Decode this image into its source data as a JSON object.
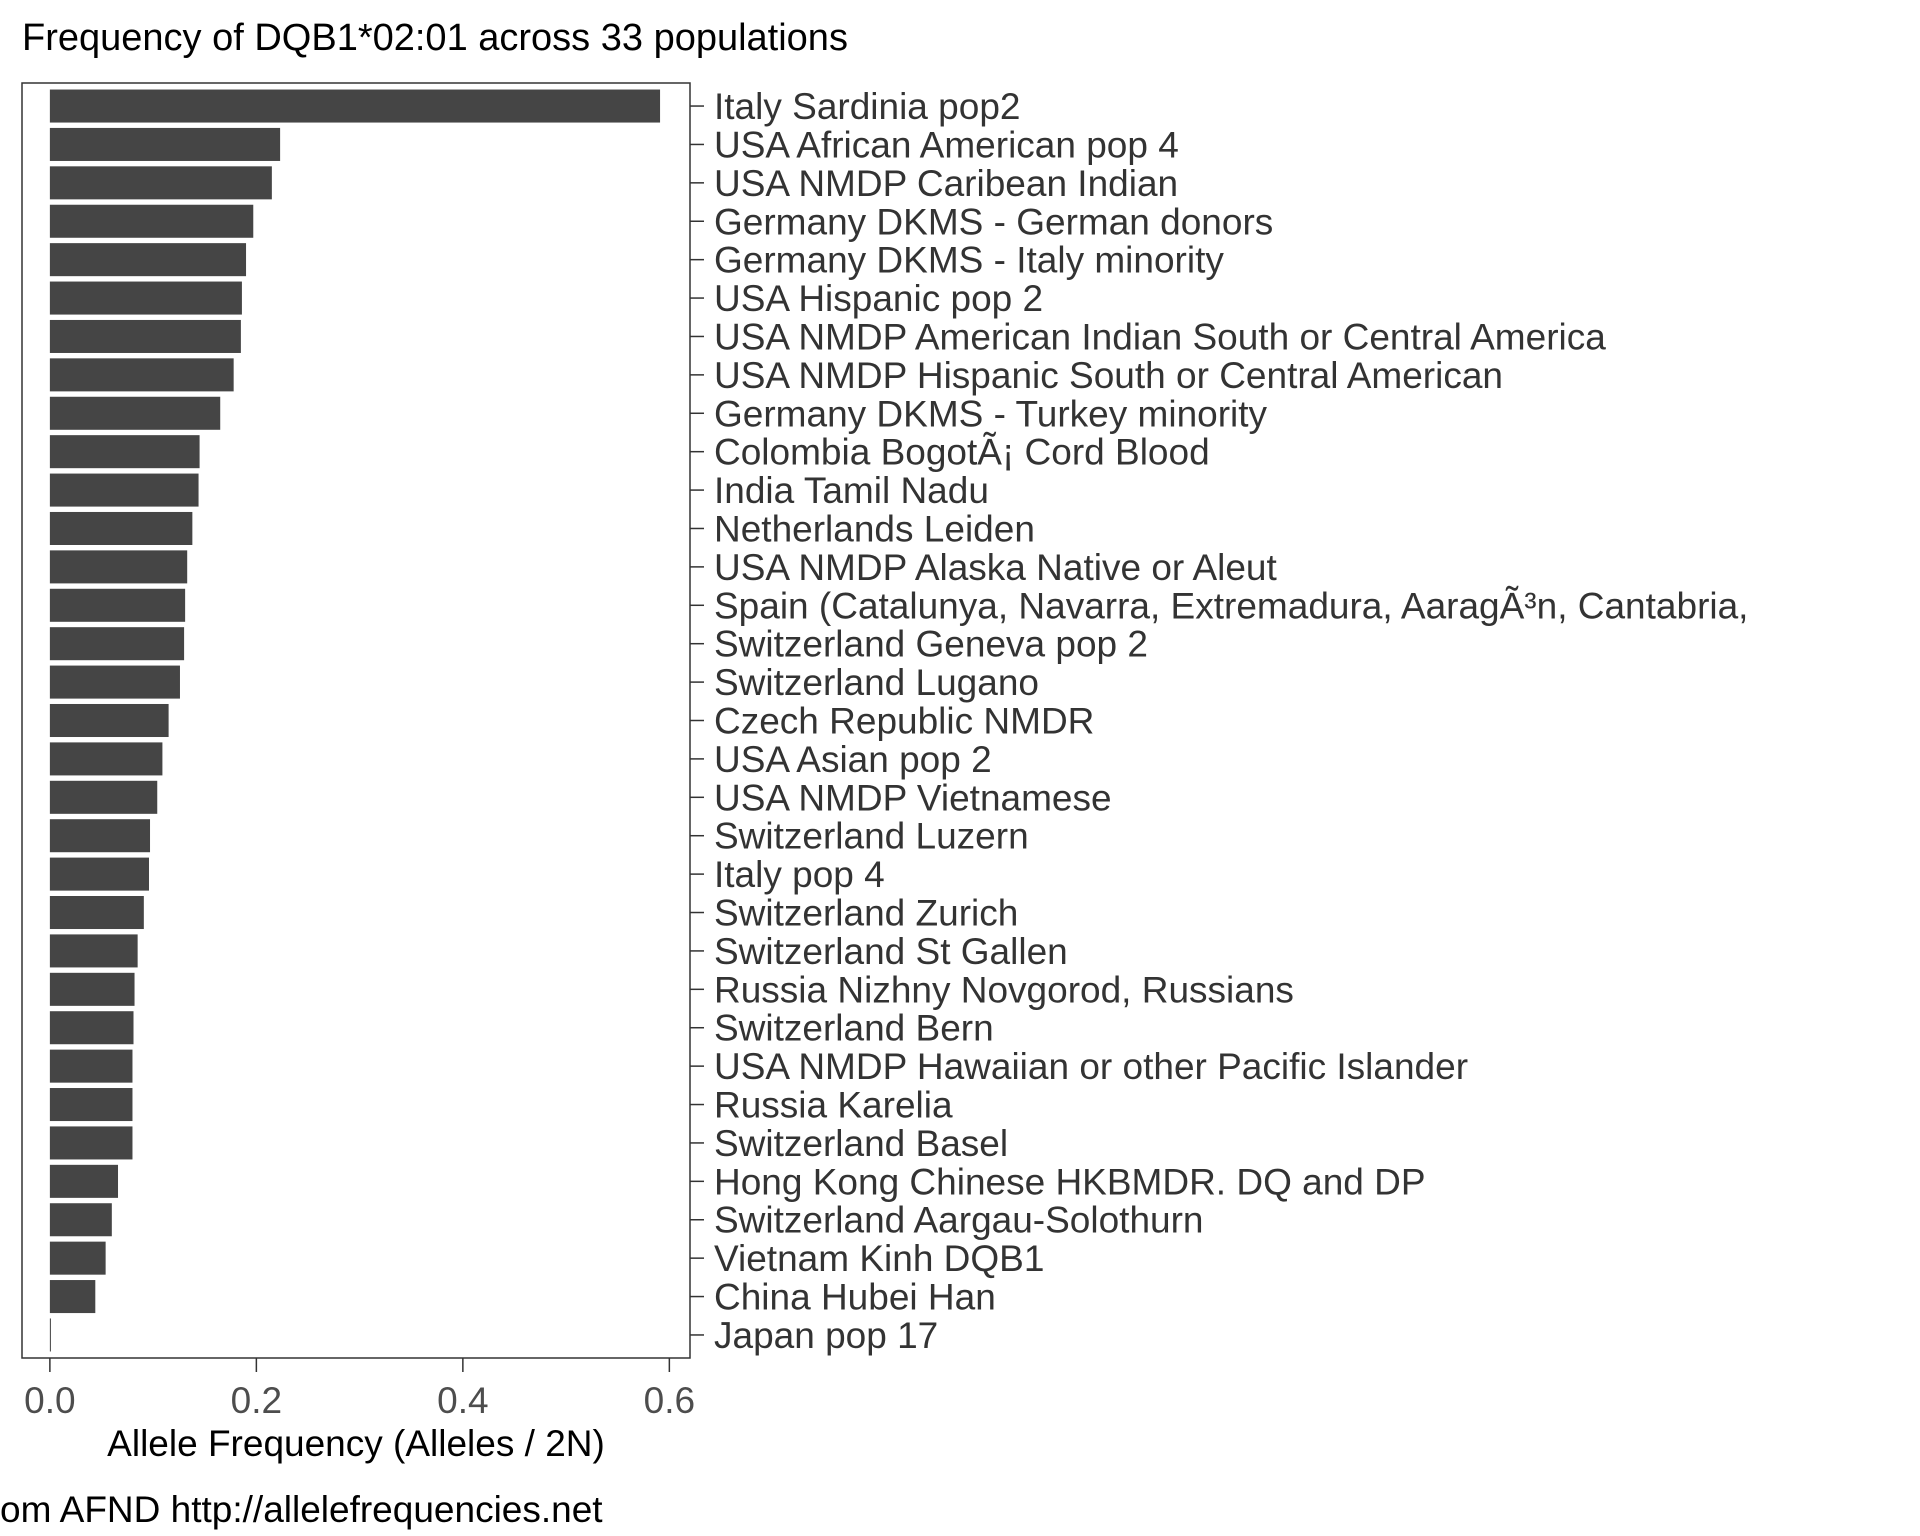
{
  "chart_data": {
    "type": "bar",
    "orientation": "horizontal",
    "title": "Frequency of DQB1*02:01 across 33 populations",
    "xlabel": "Allele Frequency (Alleles / 2N)",
    "ylabel": "",
    "caption": "om AFND http://allelefrequencies.net",
    "xlim": [
      -0.027,
      0.62
    ],
    "x_ticks": [
      0.0,
      0.2,
      0.4,
      0.6
    ],
    "x_tick_labels": [
      "0.0",
      "0.2",
      "0.4",
      "0.6"
    ],
    "grid": false,
    "bar_color": "#454545",
    "categories": [
      "Italy Sardinia pop2",
      "USA African American pop 4",
      "USA NMDP Caribean Indian",
      "Germany DKMS - German donors",
      "Germany DKMS - Italy minority",
      "USA Hispanic pop 2",
      "USA NMDP American Indian South or Central America",
      "USA NMDP Hispanic South or Central American",
      "Germany DKMS - Turkey minority",
      "Colombia BogotÃ¡ Cord Blood",
      "India Tamil Nadu",
      "Netherlands Leiden",
      "USA NMDP Alaska Native or Aleut",
      "Spain (Catalunya, Navarra, Extremadura, AaragÃ³n, Cantabria,",
      "Switzerland Geneva pop 2",
      "Switzerland Lugano",
      "Czech Republic NMDR",
      "USA Asian pop 2",
      "USA NMDP Vietnamese",
      "Switzerland Luzern",
      "Italy pop 4",
      "Switzerland Zurich",
      "Switzerland St Gallen",
      "Russia Nizhny Novgorod, Russians",
      "Switzerland Bern",
      "USA NMDP Hawaiian or other Pacific Islander",
      "Russia Karelia",
      "Switzerland Basel",
      "Hong Kong Chinese HKBMDR. DQ and DP",
      "Switzerland Aargau-Solothurn",
      "Vietnam Kinh  DQB1",
      "China Hubei Han",
      "Japan pop 17"
    ],
    "values": [
      0.591,
      0.223,
      0.215,
      0.197,
      0.19,
      0.186,
      0.185,
      0.178,
      0.165,
      0.145,
      0.144,
      0.138,
      0.133,
      0.131,
      0.13,
      0.126,
      0.115,
      0.109,
      0.104,
      0.097,
      0.096,
      0.091,
      0.085,
      0.082,
      0.081,
      0.08,
      0.08,
      0.08,
      0.066,
      0.06,
      0.054,
      0.044,
      0.001
    ]
  }
}
